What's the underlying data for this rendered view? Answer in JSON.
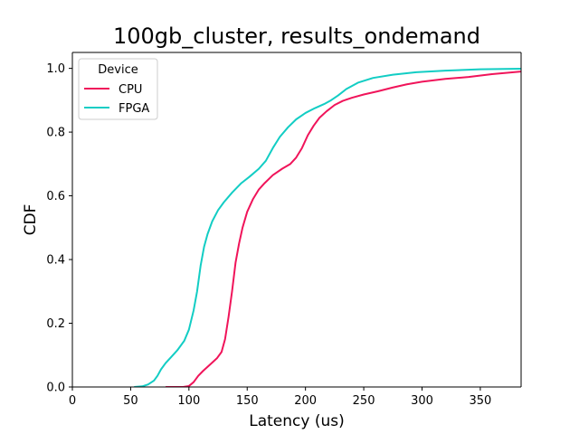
{
  "chart_data": {
    "type": "line",
    "title": "100gb_cluster, results_ondemand",
    "xlabel": "Latency (us)",
    "ylabel": "CDF",
    "xlim": [
      0,
      385
    ],
    "ylim": [
      0,
      1.05
    ],
    "xticks": [
      0,
      50,
      100,
      150,
      200,
      250,
      300,
      350
    ],
    "yticks": [
      0.0,
      0.2,
      0.4,
      0.6,
      0.8,
      1.0
    ],
    "xtick_labels": [
      "0",
      "50",
      "100",
      "150",
      "200",
      "250",
      "300",
      "350"
    ],
    "ytick_labels": [
      "0.0",
      "0.2",
      "0.4",
      "0.6",
      "0.8",
      "1.0"
    ],
    "grid": false,
    "legend": {
      "title": "Device",
      "placement": "top-left"
    },
    "series": [
      {
        "name": "CPU",
        "color": "#f0145a",
        "points": [
          [
            80,
            0.0
          ],
          [
            95,
            0.0
          ],
          [
            100,
            0.003
          ],
          [
            104,
            0.015
          ],
          [
            108,
            0.035
          ],
          [
            112,
            0.05
          ],
          [
            118,
            0.07
          ],
          [
            124,
            0.09
          ],
          [
            128,
            0.11
          ],
          [
            131,
            0.15
          ],
          [
            134,
            0.22
          ],
          [
            137,
            0.3
          ],
          [
            140,
            0.39
          ],
          [
            143,
            0.45
          ],
          [
            146,
            0.5
          ],
          [
            150,
            0.55
          ],
          [
            155,
            0.59
          ],
          [
            160,
            0.62
          ],
          [
            165,
            0.64
          ],
          [
            172,
            0.665
          ],
          [
            180,
            0.685
          ],
          [
            187,
            0.7
          ],
          [
            192,
            0.72
          ],
          [
            197,
            0.75
          ],
          [
            202,
            0.79
          ],
          [
            207,
            0.82
          ],
          [
            212,
            0.845
          ],
          [
            218,
            0.865
          ],
          [
            225,
            0.885
          ],
          [
            232,
            0.898
          ],
          [
            240,
            0.908
          ],
          [
            250,
            0.918
          ],
          [
            262,
            0.928
          ],
          [
            275,
            0.94
          ],
          [
            287,
            0.95
          ],
          [
            300,
            0.958
          ],
          [
            320,
            0.967
          ],
          [
            340,
            0.973
          ],
          [
            360,
            0.982
          ],
          [
            385,
            0.99
          ]
        ]
      },
      {
        "name": "FPGA",
        "color": "#12cdc4",
        "points": [
          [
            53,
            0.0
          ],
          [
            60,
            0.002
          ],
          [
            65,
            0.008
          ],
          [
            70,
            0.02
          ],
          [
            73,
            0.035
          ],
          [
            76,
            0.055
          ],
          [
            80,
            0.075
          ],
          [
            85,
            0.095
          ],
          [
            90,
            0.115
          ],
          [
            96,
            0.145
          ],
          [
            100,
            0.18
          ],
          [
            104,
            0.24
          ],
          [
            107,
            0.3
          ],
          [
            110,
            0.38
          ],
          [
            113,
            0.44
          ],
          [
            116,
            0.48
          ],
          [
            120,
            0.52
          ],
          [
            125,
            0.555
          ],
          [
            130,
            0.58
          ],
          [
            137,
            0.61
          ],
          [
            145,
            0.64
          ],
          [
            152,
            0.66
          ],
          [
            160,
            0.685
          ],
          [
            166,
            0.71
          ],
          [
            172,
            0.75
          ],
          [
            178,
            0.785
          ],
          [
            185,
            0.815
          ],
          [
            192,
            0.84
          ],
          [
            200,
            0.86
          ],
          [
            208,
            0.875
          ],
          [
            216,
            0.888
          ],
          [
            222,
            0.9
          ],
          [
            228,
            0.915
          ],
          [
            235,
            0.935
          ],
          [
            245,
            0.955
          ],
          [
            258,
            0.97
          ],
          [
            275,
            0.98
          ],
          [
            295,
            0.988
          ],
          [
            320,
            0.993
          ],
          [
            350,
            0.997
          ],
          [
            385,
            0.999
          ]
        ]
      }
    ]
  }
}
